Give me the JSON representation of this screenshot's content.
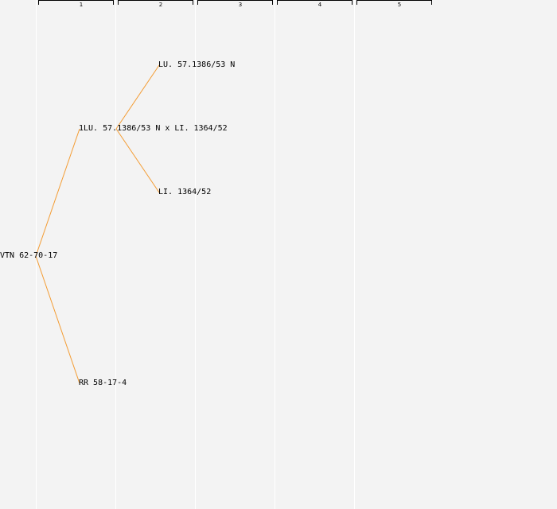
{
  "generations": [
    {
      "label": "1"
    },
    {
      "label": "2"
    },
    {
      "label": "3"
    },
    {
      "label": "4"
    },
    {
      "label": "5"
    }
  ],
  "pedigree": {
    "root": {
      "label": "VTN 62-70-17"
    },
    "parents": [
      {
        "label": "1LU. 57.1386/53 N x LI. 1364/52"
      },
      {
        "label": "RR 58-17-4"
      }
    ],
    "grandparents": [
      {
        "label": "LU. 57.1386/53 N"
      },
      {
        "label": "LI. 1364/52"
      }
    ]
  },
  "colors": {
    "background": "#f3f3f3",
    "column_divider": "#ffffff",
    "connector": "#f39c33",
    "text": "#000000"
  }
}
